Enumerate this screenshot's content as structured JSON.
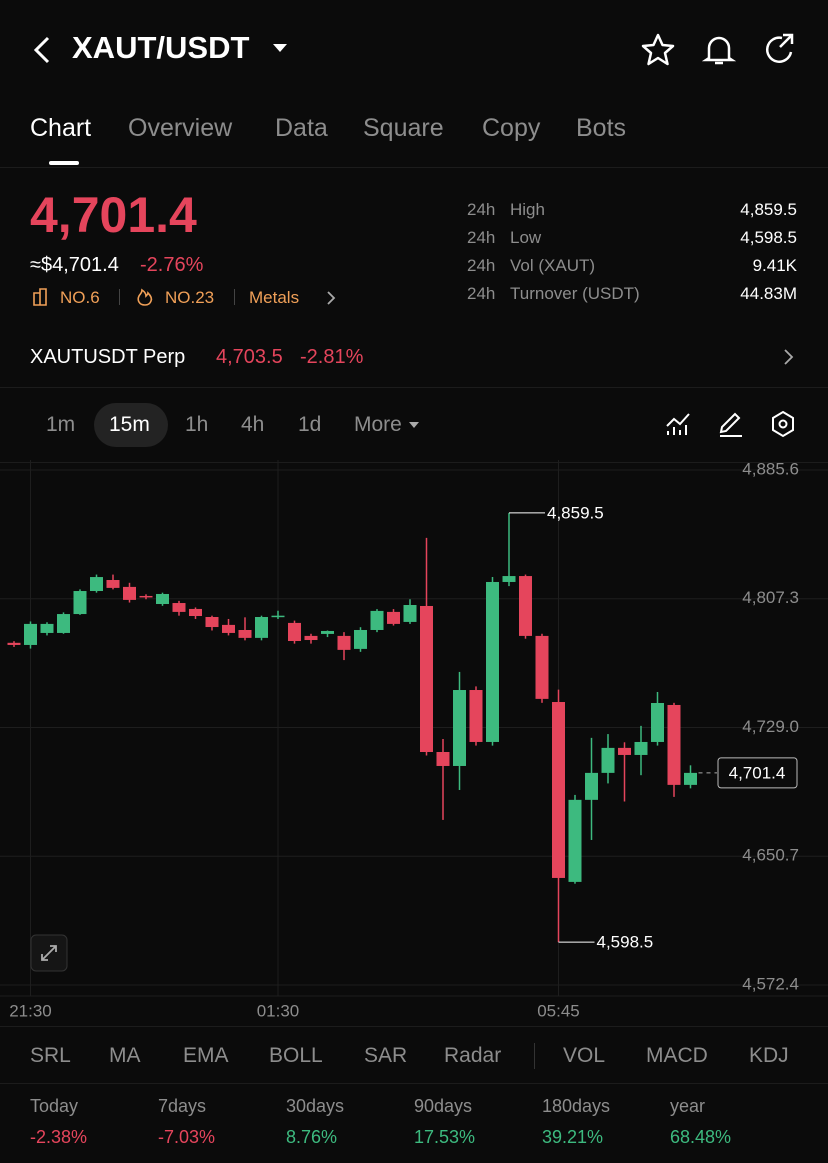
{
  "header": {
    "title": "XAUT/USDT"
  },
  "tabs": [
    "Chart",
    "Overview",
    "Data",
    "Square",
    "Copy",
    "Bots"
  ],
  "price": {
    "last": "4,701.4",
    "usd": "≈$4,701.4",
    "change": "-2.76%",
    "rank": "NO.6",
    "hot": "NO.23",
    "sector": "Metals"
  },
  "stats": [
    {
      "period": "24h",
      "label": "High",
      "value": "4,859.5"
    },
    {
      "period": "24h",
      "label": "Low",
      "value": "4,598.5"
    },
    {
      "period": "24h",
      "label": "Vol (XAUT)",
      "value": "9.41K"
    },
    {
      "period": "24h",
      "label": "Turnover (USDT)",
      "value": "44.83M"
    }
  ],
  "perp": {
    "name": "XAUTUSDT Perp",
    "price": "4,703.5",
    "change": "-2.81%"
  },
  "intervals": [
    "1m",
    "15m",
    "1h",
    "4h",
    "1d",
    "More"
  ],
  "chart_data": {
    "type": "candlestick",
    "categories": [
      null,
      "21:30",
      null,
      null,
      null,
      null,
      null,
      null,
      null,
      null,
      null,
      null,
      null,
      null,
      null,
      null,
      "01:30",
      null,
      null,
      null,
      null,
      null,
      null,
      null,
      null,
      null,
      null,
      null,
      null,
      null,
      null,
      null,
      null,
      "05:45",
      null,
      null,
      null,
      null,
      null,
      null,
      null,
      null
    ],
    "open": [
      4780.5,
      4779.2,
      4786.5,
      4786.5,
      4798.0,
      4812.0,
      4818.7,
      4814.5,
      4809,
      4804.1,
      4804.7,
      4801.1,
      4796.2,
      4791.4,
      4788.3,
      4783.5,
      4796.2,
      4792.6,
      4784.7,
      4785.9,
      4784.7,
      4776.8,
      4788.3,
      4799.3,
      4793.2,
      4802.9,
      4714.1,
      4705.6,
      4751.8,
      4720.2,
      4817.5,
      4821.1,
      4784.7,
      4744.5,
      4635.1,
      4685.0,
      4701.4,
      4716.6,
      4712.3,
      4720.2,
      4742.7,
      4694.1
    ],
    "high": [
      4781.5,
      4793.5,
      4793,
      4799,
      4813,
      4822,
      4822,
      4817,
      4810,
      4811,
      4806,
      4802,
      4797,
      4795,
      4796,
      4797,
      4800,
      4794,
      4786,
      4788,
      4787,
      4790,
      4801,
      4801,
      4807,
      4844.3,
      4722,
      4762.8,
      4754,
      4820.5,
      4859.5,
      4822,
      4786,
      4752,
      4688,
      4722.7,
      4725,
      4720,
      4730,
      4750.6,
      4744,
      4706
    ],
    "low": [
      4778,
      4777,
      4785,
      4786,
      4797.5,
      4811,
      4813,
      4805,
      4807,
      4803,
      4797,
      4795,
      4788,
      4785,
      4782,
      4782,
      4795,
      4780,
      4780,
      4784,
      4770,
      4775,
      4787,
      4791,
      4792,
      4712,
      4672.8,
      4691.0,
      4718,
      4718,
      4815,
      4783,
      4744,
      4598.5,
      4634,
      4660.6,
      4695,
      4684,
      4700,
      4718,
      4686.8,
      4692
    ],
    "close": [
      4779.2,
      4792.0,
      4792.0,
      4798.0,
      4812.0,
      4820.5,
      4813.9,
      4806.6,
      4808.4,
      4810.2,
      4799.3,
      4796.8,
      4790.1,
      4786.5,
      4783.5,
      4796.2,
      4797.0,
      4781.6,
      4782.2,
      4787.7,
      4776.2,
      4788.3,
      4799.9,
      4792.0,
      4803.5,
      4714.1,
      4705.6,
      4751.8,
      4720.2,
      4817.5,
      4821.1,
      4784.7,
      4746.4,
      4637.5,
      4685.0,
      4701.4,
      4716.6,
      4712.3,
      4720.2,
      4743.9,
      4694.1,
      4701.4
    ],
    "up_color": "#3dba7f",
    "down_color": "#e5455c",
    "ylim": [
      4572.4,
      4885.6
    ],
    "yticks": [
      {
        "value": 4572.4,
        "label": "4,572.4"
      },
      {
        "value": 4650.7,
        "label": "4,650.7"
      },
      {
        "value": 4729.0,
        "label": "4,729.0"
      },
      {
        "value": 4807.3,
        "label": "4,807.3"
      },
      {
        "value": 4885.6,
        "label": "4,885.6"
      }
    ],
    "grid": true,
    "high_label": {
      "value": 4859.5,
      "label": "4,859.5"
    },
    "low_label": {
      "value": 4598.5,
      "label": "4,598.5"
    },
    "last_price": {
      "value": 4701.4,
      "label": "4,701.4"
    }
  },
  "indicators": [
    "SRL",
    "MA",
    "EMA",
    "BOLL",
    "SAR",
    "Radar",
    "VOL",
    "MACD",
    "KDJ"
  ],
  "performance": [
    {
      "period": "Today",
      "change": "-2.38%"
    },
    {
      "period": "7days",
      "change": "-7.03%"
    },
    {
      "period": "30days",
      "change": "8.76%"
    },
    {
      "period": "90days",
      "change": "17.53%"
    },
    {
      "period": "180days",
      "change": "39.21%"
    },
    {
      "period": "year",
      "change": "68.48%"
    }
  ]
}
